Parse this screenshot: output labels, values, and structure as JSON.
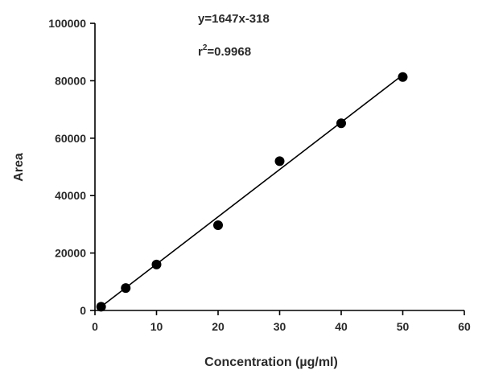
{
  "chart_data": {
    "type": "scatter",
    "xlabel": "Concentration (µg/ml)",
    "ylabel": "Area",
    "xlim": [
      0,
      60
    ],
    "ylim": [
      0,
      100000
    ],
    "x_ticks": [
      0,
      10,
      20,
      30,
      40,
      50,
      60
    ],
    "y_ticks": [
      0,
      20000,
      40000,
      60000,
      80000,
      100000
    ],
    "x_tick_labels": [
      "0",
      "10",
      "20",
      "30",
      "40",
      "50",
      "60"
    ],
    "y_tick_labels": [
      "0",
      "20000",
      "40000",
      "60000",
      "80000",
      "100000"
    ],
    "grid": false,
    "legend": "none",
    "series": [
      {
        "x": [
          1,
          5,
          10,
          20,
          30,
          40,
          50
        ],
        "y": [
          1300,
          7800,
          16000,
          29700,
          52000,
          65200,
          81300
        ]
      }
    ],
    "fit_line": {
      "slope": 1647,
      "intercept": -318,
      "x_range": [
        1,
        50
      ]
    },
    "annotations": {
      "equation": "y=1647x-318",
      "r2_prefix": "r",
      "r2_sup": "2",
      "r2_value": "=0.9968"
    },
    "colors": {
      "marker": "#000000",
      "line": "#000000",
      "axis": "#000000",
      "text": "#2a2a2a"
    }
  }
}
